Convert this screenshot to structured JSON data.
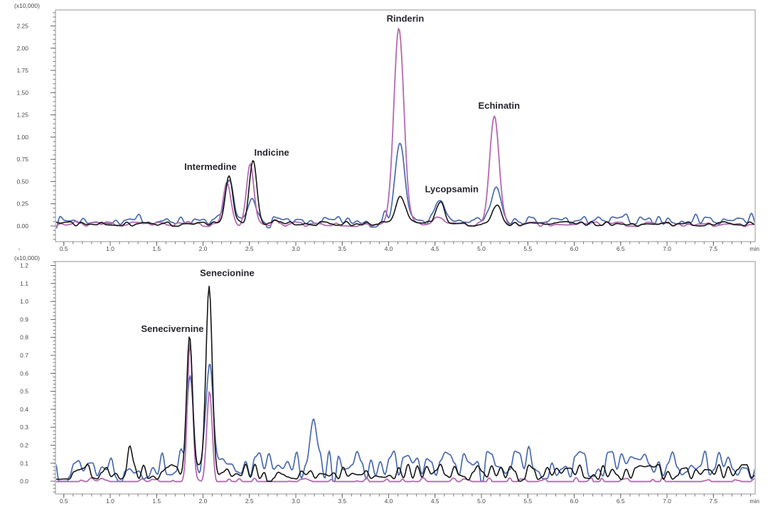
{
  "figure": {
    "background": "#ffffff",
    "x_unit_label": "min",
    "y_unit_label": "(x10,000)"
  },
  "chart_data": [
    {
      "type": "line",
      "ylabel": "(x10,000)",
      "xlabel": "min",
      "x_origin_label": "-",
      "grid": false,
      "legend": null,
      "x_range": [
        0.41,
        7.95
      ],
      "y_range": [
        -0.176,
        2.43
      ],
      "x_major_ticks": [
        0.5,
        1.0,
        1.5,
        2.0,
        2.5,
        3.0,
        3.5,
        4.0,
        4.5,
        5.0,
        5.5,
        6.0,
        6.5,
        7.0,
        7.5
      ],
      "x_minor_step": 0.1,
      "y_major_ticks": [
        0.0,
        0.25,
        0.5,
        0.75,
        1.0,
        1.25,
        1.5,
        1.75,
        2.0,
        2.25
      ],
      "y_minor_step": 0.05,
      "y_decimals": 2,
      "annotations": [
        {
          "text": "Intermedine",
          "t": 2.08,
          "y": 0.63
        },
        {
          "text": "Indicine",
          "t": 2.74,
          "y": 0.79
        },
        {
          "text": "Rinderin",
          "t": 4.18,
          "y": 2.3
        },
        {
          "text": "Lycopsamin",
          "t": 4.68,
          "y": 0.38
        },
        {
          "text": "Echinatin",
          "t": 5.19,
          "y": 1.32
        }
      ],
      "series": [
        {
          "name": "trace-blue",
          "color": "#4a6bae",
          "width": 1.7,
          "seed": 7,
          "clamp": -0.02,
          "noise": {
            "base": 0.06,
            "amp": 0.05,
            "ctrl_step": 0.05,
            "spike_prob": 0.07,
            "spike_gain": 2.2
          },
          "peaks": [
            [
              2.28,
              0.4,
              0.045
            ],
            [
              2.53,
              0.25,
              0.04
            ],
            [
              4.12,
              0.88,
              0.05
            ],
            [
              4.56,
              0.24,
              0.05
            ],
            [
              5.16,
              0.36,
              0.05
            ]
          ]
        },
        {
          "name": "trace-pink",
          "color": "#b36ab0",
          "width": 1.8,
          "seed": 23,
          "clamp": -0.02,
          "noise": {
            "base": 0.02,
            "amp": 0.027,
            "ctrl_step": 0.055,
            "spike_prob": 0.06,
            "spike_gain": 2.0
          },
          "peaks": [
            [
              2.26,
              0.48,
              0.04
            ],
            [
              2.51,
              0.66,
              0.04
            ],
            [
              4.11,
              2.2,
              0.055
            ],
            [
              4.53,
              0.1,
              0.04
            ],
            [
              5.14,
              1.24,
              0.05
            ]
          ]
        },
        {
          "name": "trace-black",
          "color": "#161616",
          "width": 1.6,
          "seed": 41,
          "clamp": -0.02,
          "noise": {
            "base": 0.025,
            "amp": 0.026,
            "ctrl_step": 0.055,
            "spike_prob": 0.06,
            "spike_gain": 2.0
          },
          "peaks": [
            [
              2.28,
              0.55,
              0.04
            ],
            [
              2.54,
              0.7,
              0.04
            ],
            [
              4.13,
              0.32,
              0.05
            ],
            [
              4.55,
              0.28,
              0.045
            ],
            [
              5.16,
              0.21,
              0.05
            ]
          ]
        }
      ]
    },
    {
      "type": "line",
      "ylabel": "(x10,000)",
      "xlabel": "min",
      "x_origin_label": "",
      "grid": false,
      "legend": null,
      "x_range": [
        0.41,
        7.95
      ],
      "y_range": [
        -0.071,
        1.222
      ],
      "x_major_ticks": [
        0.5,
        1.0,
        1.5,
        2.0,
        2.5,
        3.0,
        3.5,
        4.0,
        4.5,
        5.0,
        5.5,
        6.0,
        6.5,
        7.0,
        7.5
      ],
      "x_minor_step": 0.1,
      "y_major_ticks": [
        0.0,
        0.1,
        0.2,
        0.3,
        0.4,
        0.5,
        0.6,
        0.7,
        0.8,
        0.9,
        1.0,
        1.1,
        1.2
      ],
      "y_minor_step": 0.02,
      "y_decimals": 1,
      "annotations": [
        {
          "text": "Senecivernine",
          "t": 1.67,
          "y": 0.83
        },
        {
          "text": "Senecionine",
          "t": 2.26,
          "y": 1.14
        }
      ],
      "series": [
        {
          "name": "trace-blue",
          "color": "#4a6bae",
          "width": 1.7,
          "seed": 13,
          "clamp": 0.0,
          "noise": {
            "base": 0.09,
            "amp": 0.08,
            "ctrl_step": 0.05,
            "spike_prob": 0.07,
            "spike_gain": 2.0
          },
          "peaks": [
            [
              1.86,
              0.57,
              0.035
            ],
            [
              2.07,
              0.58,
              0.035
            ],
            [
              3.19,
              0.2,
              0.03
            ]
          ]
        },
        {
          "name": "trace-pink",
          "color": "#b36ab0",
          "width": 1.8,
          "seed": 29,
          "clamp": -0.002,
          "noise": {
            "base": -0.01,
            "amp": 0.03,
            "ctrl_step": 0.055,
            "spike_prob": 0.05,
            "spike_gain": 1.8
          },
          "peaks": [
            [
              1.86,
              0.79,
              0.028
            ],
            [
              2.07,
              0.53,
              0.03
            ]
          ]
        },
        {
          "name": "trace-black",
          "color": "#161616",
          "width": 1.6,
          "seed": 53,
          "clamp": 0.0,
          "noise": {
            "base": 0.05,
            "amp": 0.045,
            "ctrl_step": 0.05,
            "spike_prob": 0.06,
            "spike_gain": 2.0
          },
          "peaks": [
            [
              1.21,
              0.12,
              0.025
            ],
            [
              1.855,
              0.76,
              0.03
            ],
            [
              2.065,
              1.06,
              0.032
            ]
          ]
        }
      ]
    }
  ]
}
